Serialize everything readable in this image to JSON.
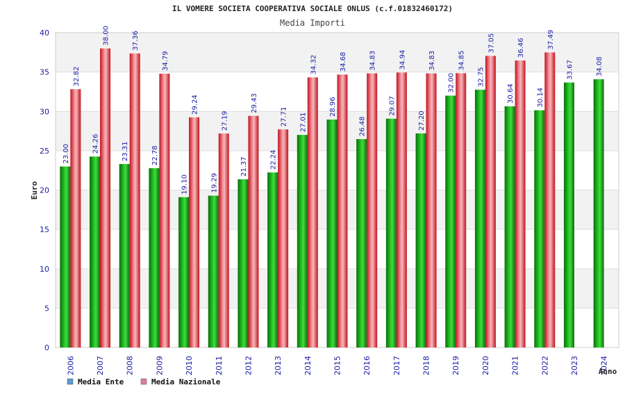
{
  "chart_data": {
    "type": "bar",
    "title": "IL VOMERE SOCIETA COOPERATIVA SOCIALE ONLUS (c.f.01832460172)",
    "subtitle": "Media Importi",
    "xlabel": "Anno",
    "ylabel": "Euro",
    "ylim": [
      0,
      40
    ],
    "yticks": [
      0,
      5,
      10,
      15,
      20,
      25,
      30,
      35,
      40
    ],
    "grid": true,
    "legend_position": "bottom-left",
    "categories": [
      "2006",
      "2007",
      "2008",
      "2009",
      "2010",
      "2011",
      "2012",
      "2013",
      "2014",
      "2015",
      "2016",
      "2017",
      "2018",
      "2019",
      "2020",
      "2021",
      "2022",
      "2023",
      "2024"
    ],
    "series": [
      {
        "name": "Media Ente",
        "bar_color": "#1aa01a",
        "legend_color": "#5b9bd5",
        "values": [
          23.0,
          24.26,
          23.31,
          22.78,
          19.1,
          19.29,
          21.37,
          22.24,
          27.01,
          28.96,
          26.48,
          29.07,
          27.2,
          32.0,
          32.75,
          30.64,
          30.14,
          33.67,
          34.08
        ],
        "labels": [
          "23.00",
          "24.26",
          "23.31",
          "22.78",
          "19.10",
          "19.29",
          "21.37",
          "22.24",
          "27.01",
          "28.96",
          "26.48",
          "29.07",
          "27.20",
          "32.00",
          "32.75",
          "30.64",
          "30.14",
          "33.67",
          "34.08"
        ]
      },
      {
        "name": "Media Nazionale",
        "bar_color": "#e8212b",
        "legend_color": "#e07ba0",
        "values": [
          32.82,
          38.0,
          37.36,
          34.79,
          29.24,
          27.19,
          29.43,
          27.71,
          34.32,
          34.68,
          34.83,
          34.94,
          34.83,
          34.85,
          37.05,
          36.46,
          37.49,
          null,
          null
        ],
        "labels": [
          "32.82",
          "38.00",
          "37.36",
          "34.79",
          "29.24",
          "27.19",
          "29.43",
          "27.71",
          "34.32",
          "34.68",
          "34.83",
          "34.94",
          "34.83",
          "34.85",
          "37.05",
          "36.46",
          "37.49",
          null,
          null
        ]
      }
    ]
  }
}
